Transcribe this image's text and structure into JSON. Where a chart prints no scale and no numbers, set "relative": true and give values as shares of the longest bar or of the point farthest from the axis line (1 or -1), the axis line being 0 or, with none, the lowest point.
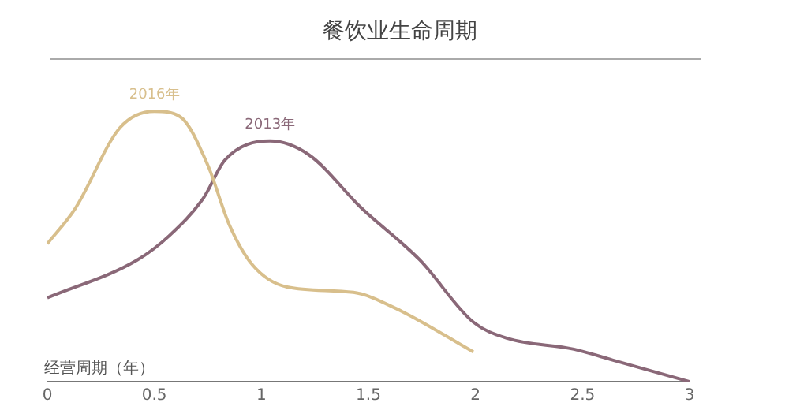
{
  "chart_data": {
    "type": "line",
    "title": "餐饮业生命周期",
    "xlabel": "经营周期（年）",
    "relative": true,
    "xlim": [
      0,
      3
    ],
    "xticks": [
      0,
      0.5,
      1,
      1.5,
      2,
      2.5,
      3
    ],
    "series": [
      {
        "name": "2016年",
        "color": "#d8bf8c",
        "x": [
          0,
          0.13,
          0.34,
          0.5,
          0.62,
          0.75,
          0.85,
          0.96,
          1.12,
          1.43,
          1.63,
          1.99
        ],
        "values": [
          0.51,
          0.64,
          0.94,
          1,
          0.98,
          0.8,
          0.58,
          0.43,
          0.35,
          0.33,
          0.27,
          0.11
        ]
      },
      {
        "name": "2013年",
        "color": "#8a6878",
        "x": [
          0,
          0.42,
          0.57,
          0.73,
          0.83,
          1.04,
          1.22,
          1.47,
          1.74,
          1.99,
          2.15,
          2.46,
          2.64,
          3
        ],
        "values": [
          0.31,
          0.45,
          0.54,
          0.68,
          0.82,
          0.89,
          0.84,
          0.64,
          0.45,
          0.22,
          0.16,
          0.12,
          0.08,
          0
        ]
      }
    ]
  }
}
